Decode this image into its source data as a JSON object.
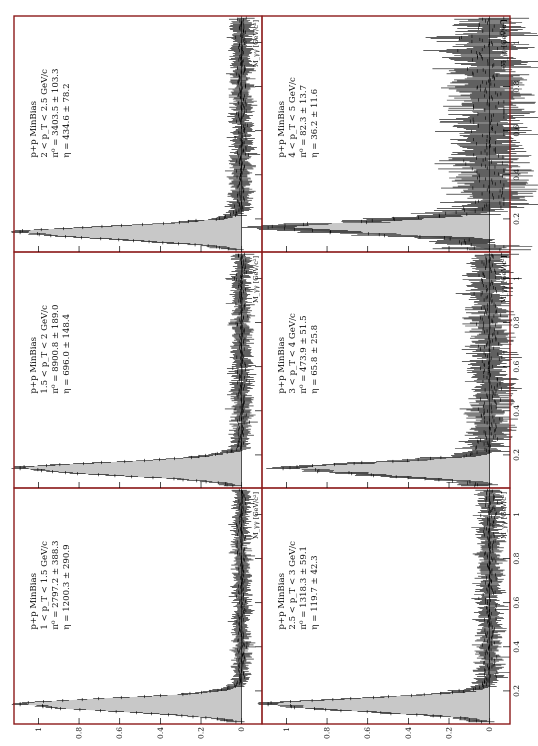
{
  "figure": {
    "y_ticks": [
      "0",
      "0.2",
      "0.4",
      "0.6",
      "0.8",
      "1"
    ],
    "x_ticks": [
      "0.2",
      "0.4",
      "0.6",
      "0.8",
      "1"
    ],
    "x_label": "M_γγ [GeV/c²]",
    "colors": {
      "frame": "#8b1a1a",
      "fill": "#c8c8c8",
      "points": "#000000"
    }
  },
  "chart_data": [
    {
      "type": "scatter",
      "lines": [
        "p+p MinBias",
        "1 < p_T < 1.5 GeV/c",
        "π⁰ = 2797.2 ± 388.3",
        "η = 1200.3 ± 290.9"
      ],
      "xlim": [
        0.05,
        1.12
      ],
      "ylim": [
        -0.1,
        1.12
      ],
      "peak": 1.0,
      "peak_x": 0.135,
      "noise": 0.02,
      "err": 0.035
    },
    {
      "type": "scatter",
      "lines": [
        "p+p MinBias",
        "1.5 < p_T < 2 GeV/c",
        "π⁰ = 8900.8 ± 189.0",
        "η = 696.0 ± 148.4"
      ],
      "xlim": [
        0.05,
        1.12
      ],
      "ylim": [
        -0.1,
        1.12
      ],
      "peak": 1.0,
      "peak_x": 0.135,
      "noise": 0.025,
      "err": 0.04
    },
    {
      "type": "scatter",
      "lines": [
        "p+p MinBias",
        "2 < p_T < 2.5 GeV/c",
        "π⁰ = 3403.5 ± 103.3",
        "η = 434.6 ± 78.2"
      ],
      "xlim": [
        0.05,
        1.12
      ],
      "ylim": [
        -0.1,
        1.12
      ],
      "peak": 1.0,
      "peak_x": 0.135,
      "noise": 0.025,
      "err": 0.045
    },
    {
      "type": "scatter",
      "lines": [
        "p+p MinBias",
        "2.5 < p_T < 3 GeV/c",
        "π⁰ = 1318.3 ± 59.1",
        "η = 119.7 ± 42.3"
      ],
      "xlim": [
        0.05,
        1.12
      ],
      "ylim": [
        -0.1,
        1.12
      ],
      "peak": 1.0,
      "peak_x": 0.135,
      "noise": 0.03,
      "err": 0.05
    },
    {
      "type": "scatter",
      "lines": [
        "p+p MinBias",
        "3 < p_T < 4 GeV/c",
        "π⁰ = 473.9 ± 51.5",
        "η = 65.8 ± 25.8"
      ],
      "xlim": [
        0.05,
        1.12
      ],
      "ylim": [
        -0.1,
        1.12
      ],
      "peak": 0.85,
      "peak_x": 0.135,
      "noise": 0.05,
      "err": 0.08
    },
    {
      "type": "scatter",
      "lines": [
        "p+p MinBias",
        "4 < p_T < 5 GeV/c",
        "π⁰ = 82.3 ± 13.7",
        "η = 36.2 ± 11.6"
      ],
      "xlim": [
        0.05,
        1.12
      ],
      "ylim": [
        -0.1,
        1.12
      ],
      "peak": 0.95,
      "peak_x": 0.16,
      "noise": 0.1,
      "err": 0.14
    }
  ]
}
